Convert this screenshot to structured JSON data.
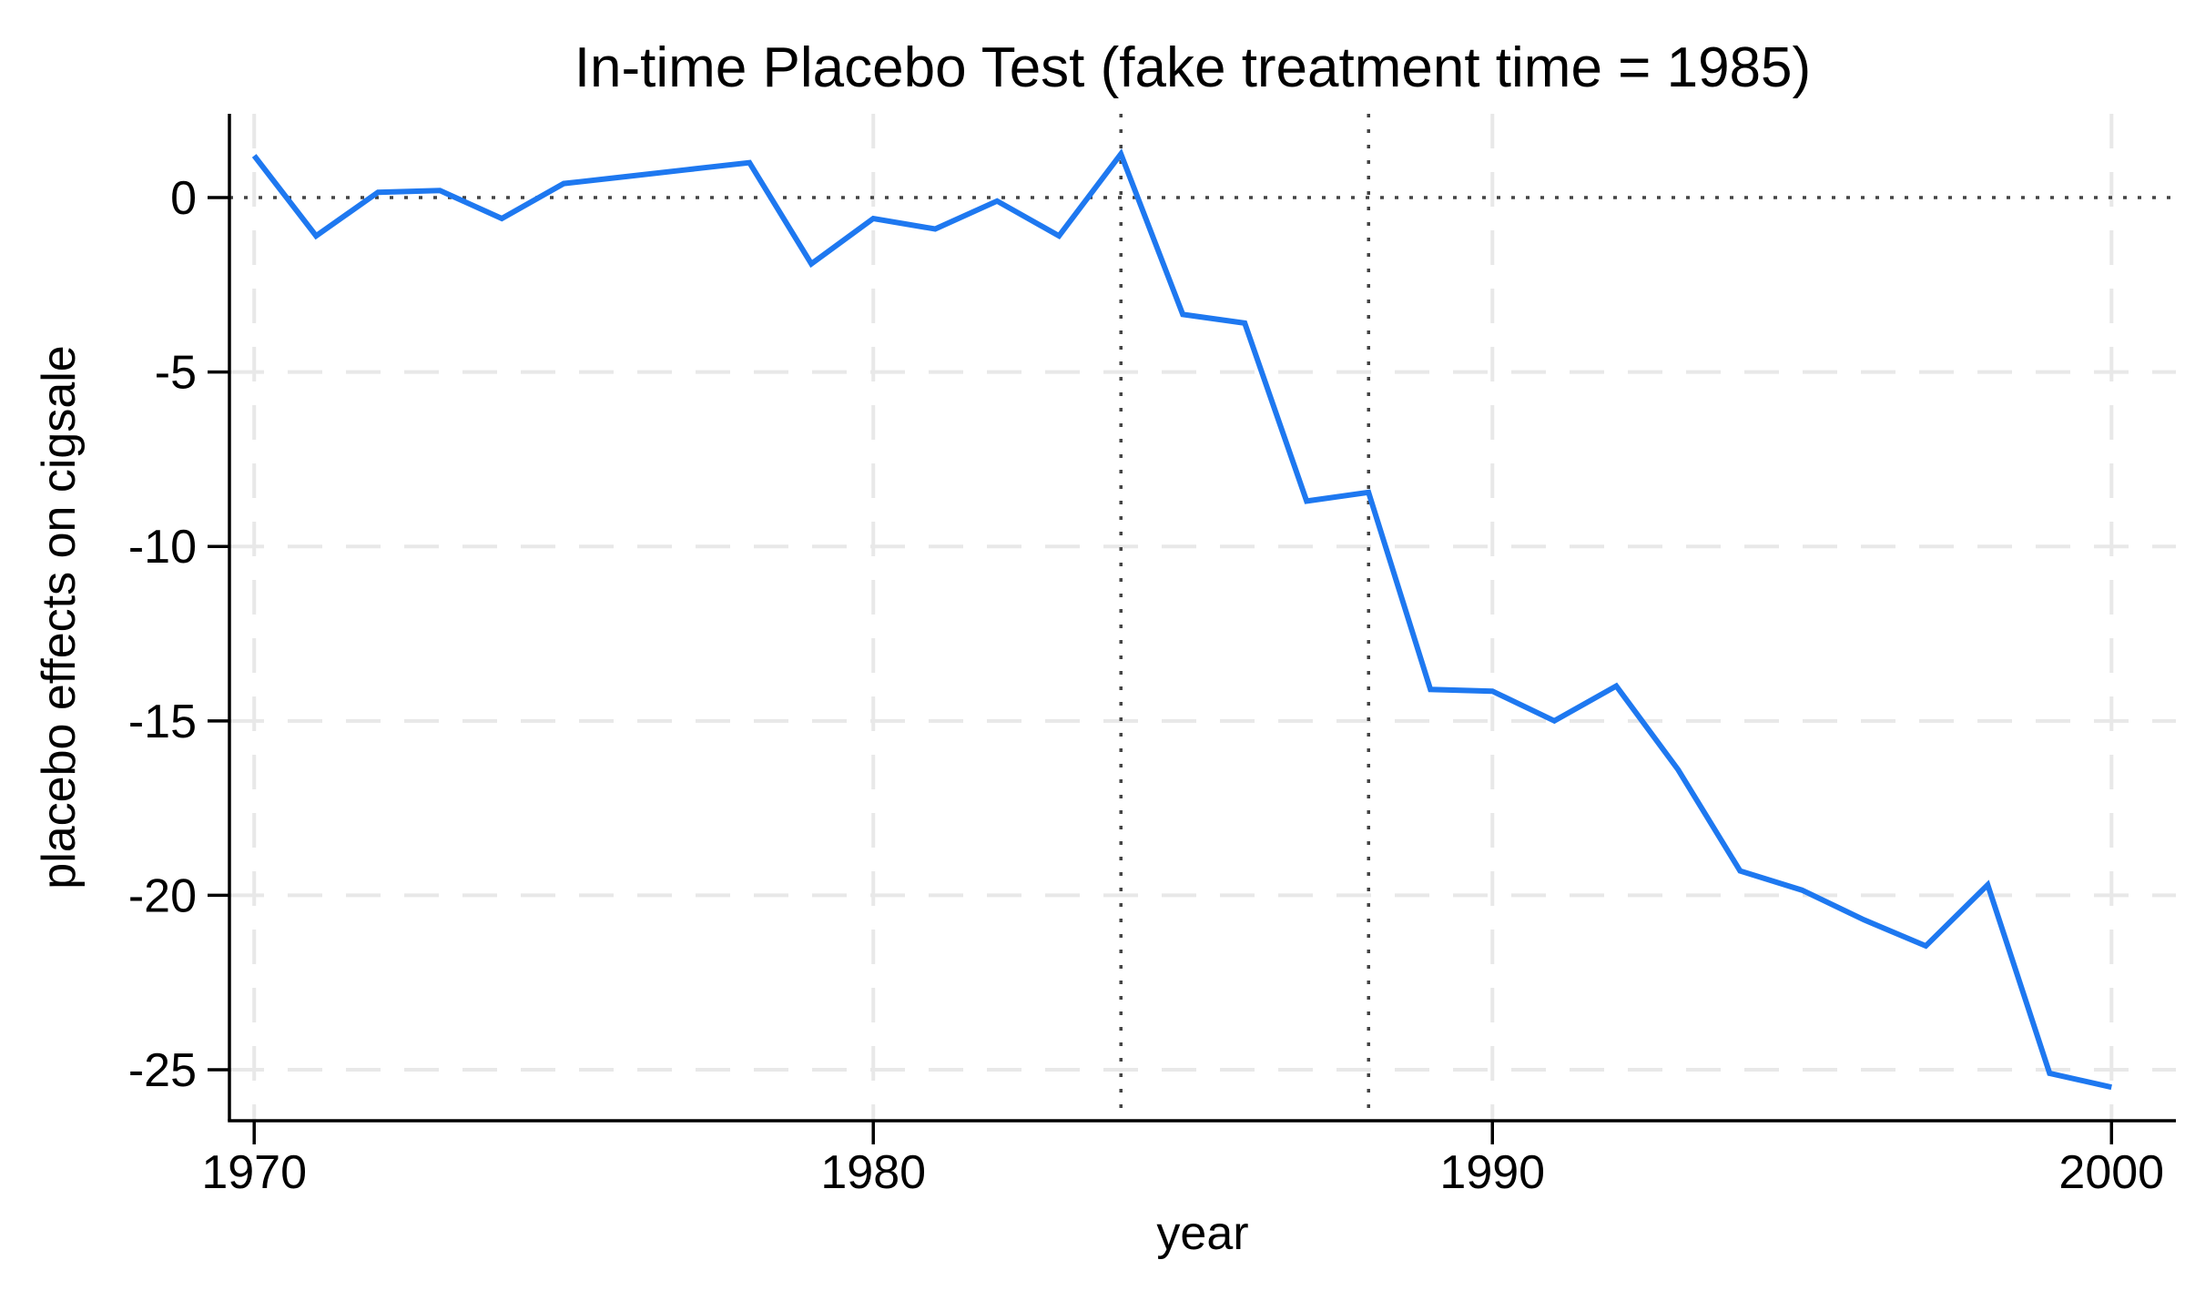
{
  "chart_data": {
    "type": "line",
    "title": "In-time Placebo Test (fake treatment time = 1985)",
    "xlabel": "year",
    "ylabel": "placebo effects on cigsale",
    "x": [
      1970,
      1971,
      1972,
      1973,
      1974,
      1975,
      1976,
      1977,
      1978,
      1979,
      1980,
      1981,
      1982,
      1983,
      1984,
      1985,
      1986,
      1987,
      1988,
      1989,
      1990,
      1991,
      1992,
      1993,
      1994,
      1995,
      1996,
      1997,
      1998,
      1999,
      2000
    ],
    "values": [
      1.2,
      -1.1,
      0.15,
      0.2,
      -0.6,
      0.4,
      0.6,
      0.8,
      1.0,
      -1.9,
      -0.6,
      -0.9,
      -0.1,
      -1.1,
      1.25,
      -3.35,
      -3.6,
      -8.7,
      -8.45,
      -14.1,
      -14.15,
      -15.0,
      -14.0,
      -16.4,
      -19.3,
      -19.85,
      -20.7,
      -21.45,
      -19.7,
      -25.1,
      -25.5
    ],
    "xticks": [
      1970,
      1980,
      1990,
      2000
    ],
    "yticks": [
      0,
      -5,
      -10,
      -15,
      -20,
      -25
    ],
    "grid_x": [
      1970,
      1980,
      1990,
      2000
    ],
    "grid_y": [
      -5,
      -10,
      -15,
      -20,
      -25
    ],
    "ref_hline": 0,
    "ref_vlines": [
      1984,
      1988
    ],
    "xlim": [
      1969.6,
      2001.04
    ],
    "ylim": [
      -26.46,
      2.4
    ],
    "legend": "none",
    "grid": "light-dashed",
    "colors": {
      "line": "#1e78f0",
      "grid": "#e8e8e8",
      "reference": "#444444",
      "axis": "#000000",
      "background": "#ffffff"
    }
  }
}
